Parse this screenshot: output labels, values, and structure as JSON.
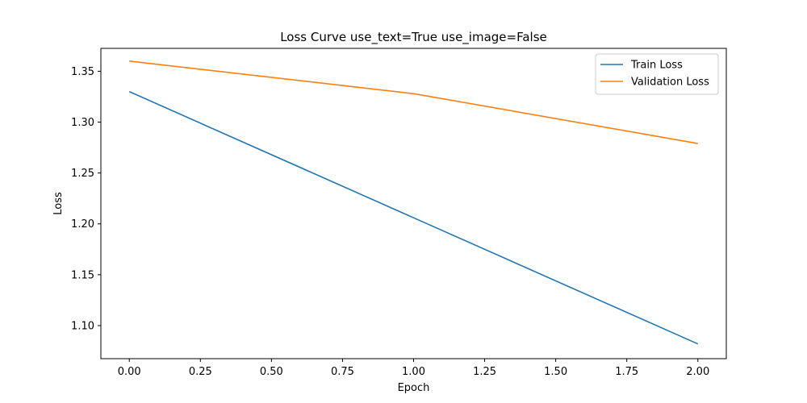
{
  "chart_data": {
    "type": "line",
    "title": "Loss Curve use_text=True use_image=False",
    "xlabel": "Epoch",
    "ylabel": "Loss",
    "x": [
      0,
      1,
      2
    ],
    "series": [
      {
        "name": "Train Loss",
        "color": "#1f77b4",
        "values": [
          1.33,
          1.206,
          1.082
        ]
      },
      {
        "name": "Validation Loss",
        "color": "#ff7f0e",
        "values": [
          1.36,
          1.328,
          1.279
        ]
      }
    ],
    "xlim": [
      -0.1,
      2.1
    ],
    "ylim": [
      1.0675,
      1.3725
    ],
    "xticks": [
      0.0,
      0.25,
      0.5,
      0.75,
      1.0,
      1.25,
      1.5,
      1.75,
      2.0
    ],
    "xtick_labels": [
      "0.00",
      "0.25",
      "0.50",
      "0.75",
      "1.00",
      "1.25",
      "1.50",
      "1.75",
      "2.00"
    ],
    "yticks": [
      1.1,
      1.15,
      1.2,
      1.25,
      1.3,
      1.35
    ],
    "ytick_labels": [
      "1.10",
      "1.15",
      "1.20",
      "1.25",
      "1.30",
      "1.35"
    ],
    "grid": false,
    "legend_position": "top-right"
  }
}
